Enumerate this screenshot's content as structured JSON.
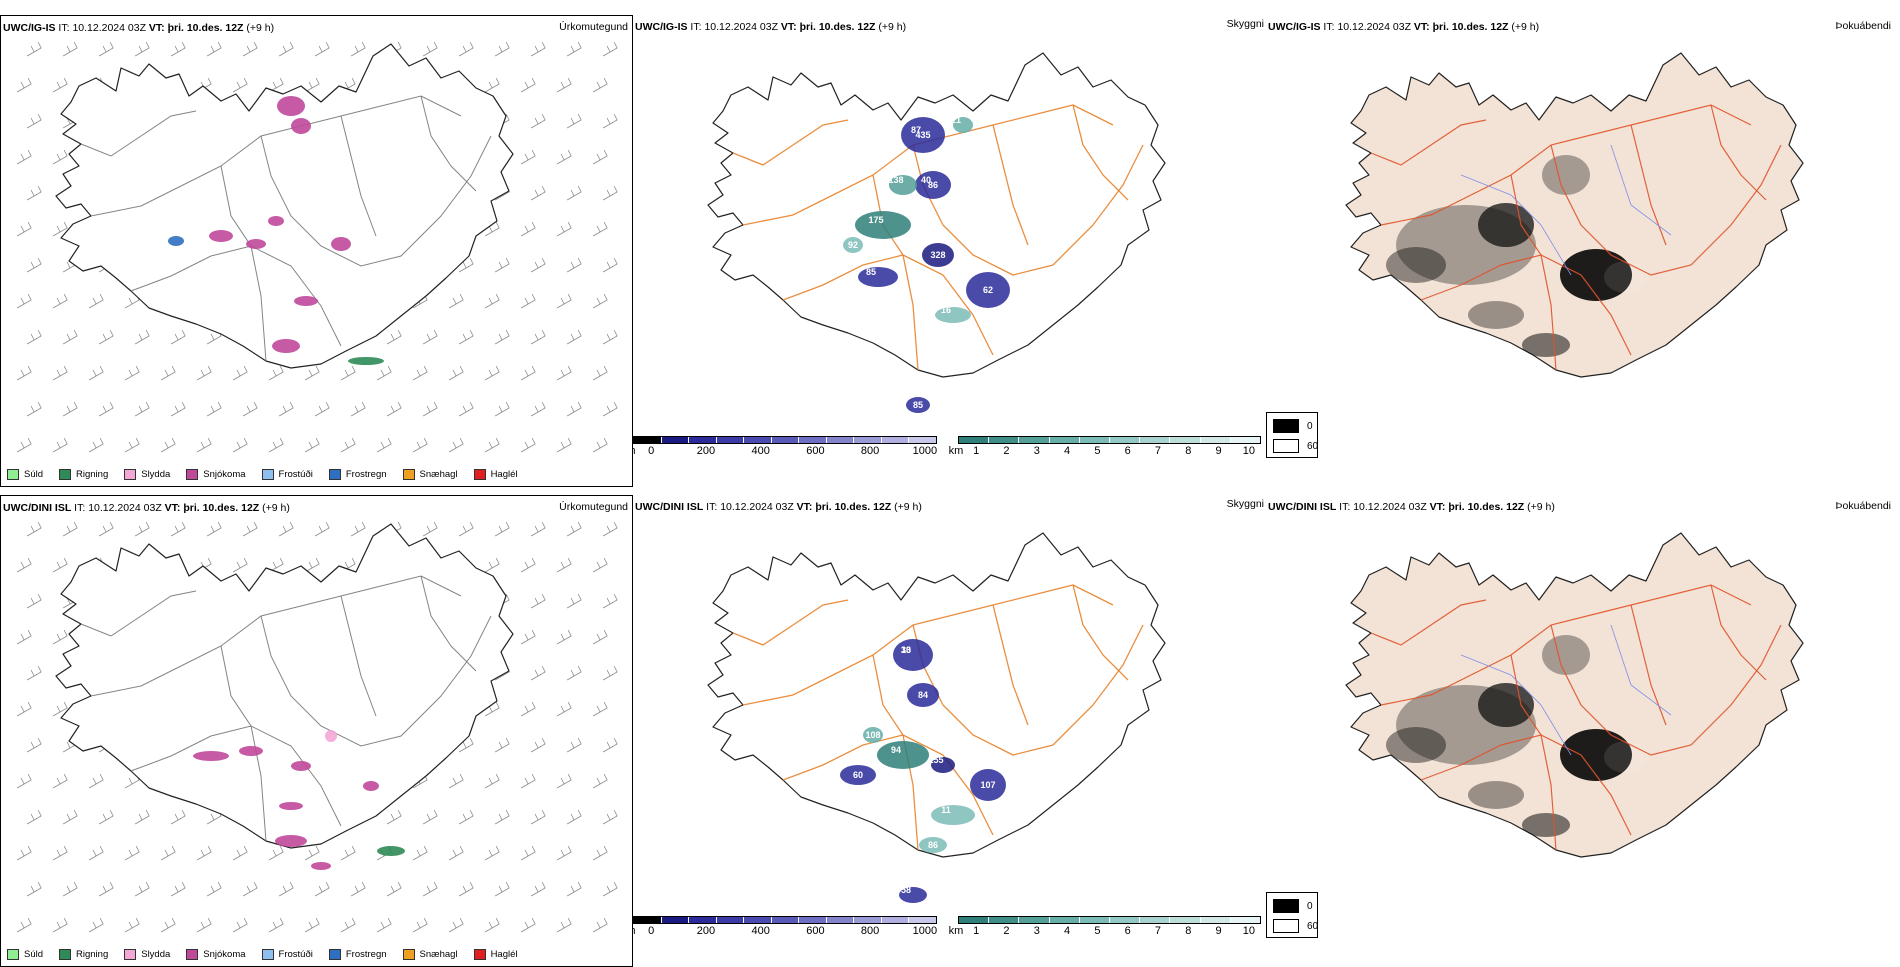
{
  "rows": [
    {
      "model": "UWC/IG-IS",
      "it_label": "IT:",
      "it_value": "10.12.2024 03Z",
      "vt_label": "VT:",
      "vt_value": "þri. 10.des. 12Z",
      "offset": "(+9 h)",
      "precip_title": "Úrkomutegund",
      "vis_title": "Skyggni",
      "fog_title": "Þokuábendi",
      "ceiling_labels": [
        "87",
        "86",
        "175",
        "328",
        "85",
        "62",
        "138",
        "92",
        "16",
        "85",
        "21",
        "435",
        "40"
      ],
      "vis_labels": []
    },
    {
      "model": "UWC/DINI ISL",
      "it_label": "IT:",
      "it_value": "10.12.2024 03Z",
      "vt_label": "VT:",
      "vt_value": "þri. 10.des. 12Z",
      "offset": "(+9 h)",
      "precip_title": "Úrkomutegund",
      "vis_title": "Skyggni",
      "fog_title": "Þokuábendi",
      "ceiling_labels": [
        "13",
        "84",
        "94",
        "60",
        "155",
        "107",
        "11",
        "86",
        "58",
        "108",
        "30"
      ],
      "vis_labels": []
    }
  ],
  "precip_legend": [
    {
      "label": "Súld",
      "color": "#90ee90"
    },
    {
      "label": "Rigning",
      "color": "#2e8b57"
    },
    {
      "label": "Slydda",
      "color": "#f4a6d7"
    },
    {
      "label": "Snjókoma",
      "color": "#c0489a"
    },
    {
      "label": "Frostúði",
      "color": "#8fbfef"
    },
    {
      "label": "Frostregn",
      "color": "#2f6fbf"
    },
    {
      "label": "Snæhagl",
      "color": "#f0a020"
    },
    {
      "label": "Haglél",
      "color": "#e02020"
    }
  ],
  "ceiling_scale": {
    "unit": "m",
    "ticks": [
      "0",
      "200",
      "400",
      "600",
      "800",
      "1000"
    ],
    "colors": [
      "#000000",
      "#1a1a80",
      "#2a2a9a",
      "#3a3aa8",
      "#4a4ab0",
      "#5a5ab8",
      "#6e6ec4",
      "#8484cc",
      "#9a9ad6",
      "#b0b0e0",
      "#c8c8ea"
    ]
  },
  "vis_scale": {
    "unit": "km",
    "ticks": [
      "1",
      "2",
      "3",
      "4",
      "5",
      "6",
      "7",
      "8",
      "9",
      "10"
    ],
    "colors": [
      "#2f7f7a",
      "#3f8e88",
      "#52a098",
      "#66aea8",
      "#7cbcb6",
      "#92c9c4",
      "#a8d4d0",
      "#bddfdc",
      "#d2e9e7",
      "#e8f4f3"
    ]
  },
  "fog_legend": [
    {
      "label": "0",
      "color": "#000000"
    },
    {
      "label": "60",
      "color": "#ffffff"
    }
  ]
}
